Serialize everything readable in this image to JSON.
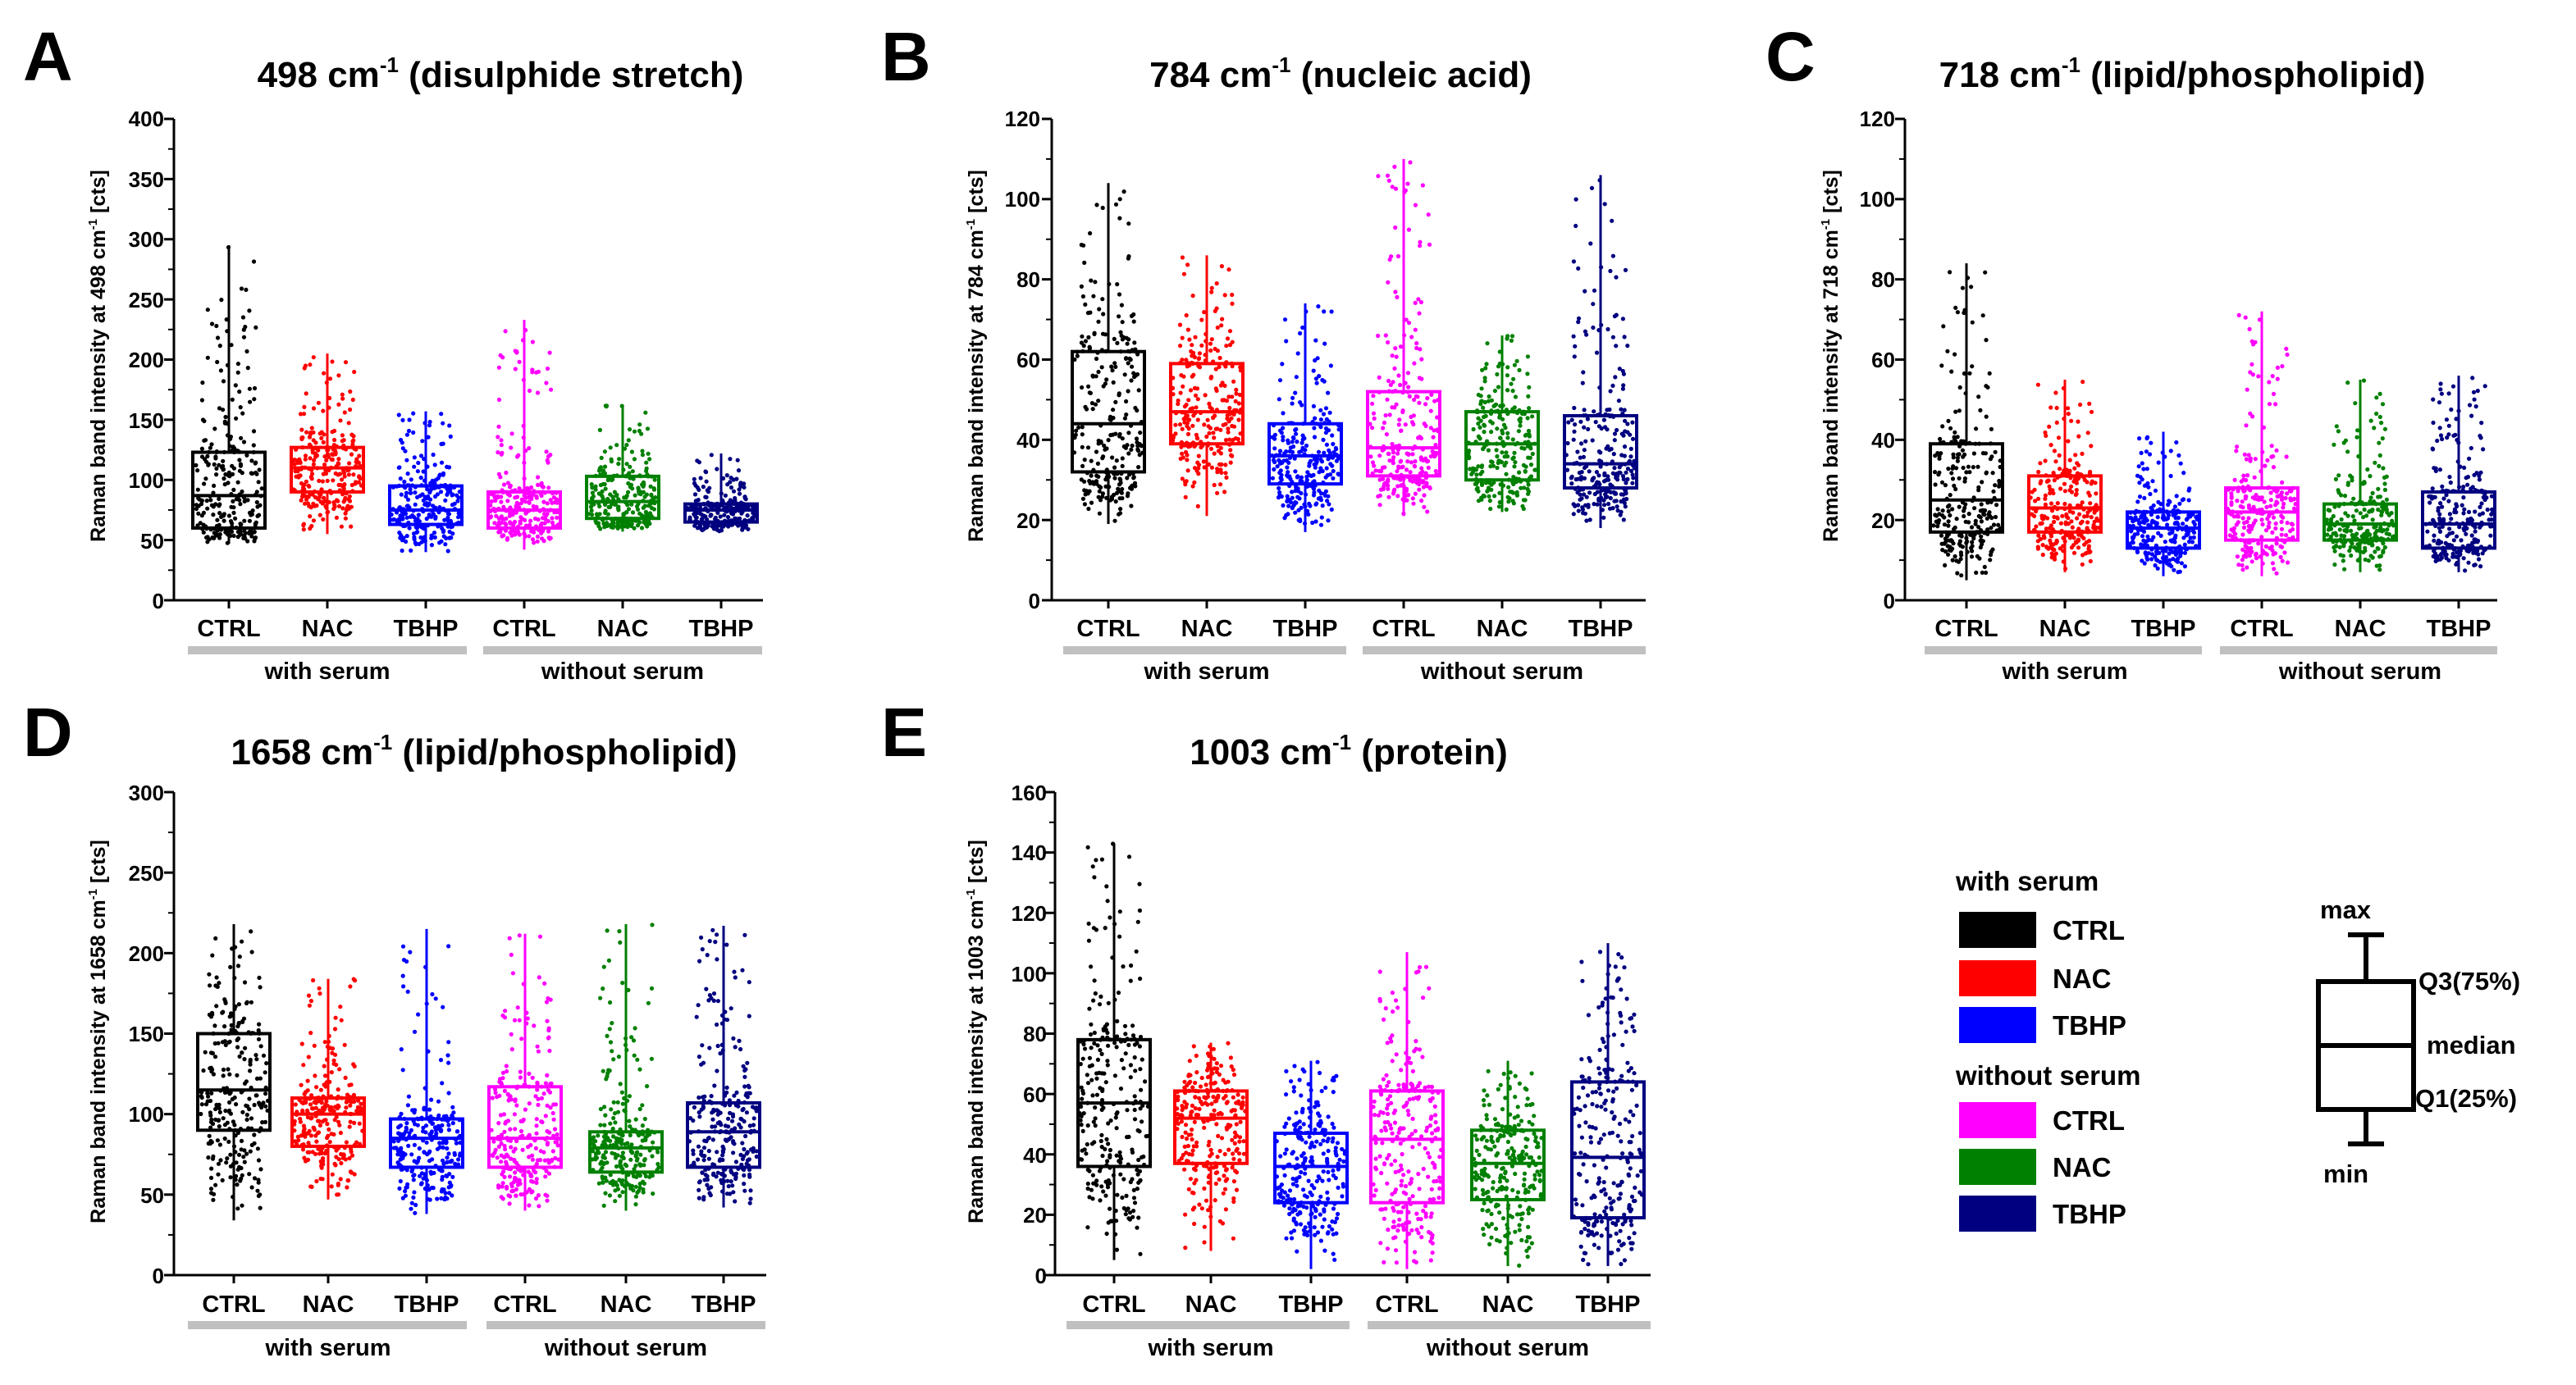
{
  "groups": [
    "with serum",
    "without serum"
  ],
  "categories": [
    "CTRL",
    "NAC",
    "TBHP",
    "CTRL",
    "NAC",
    "TBHP"
  ],
  "colors": [
    "#000000",
    "#ff0000",
    "#0000ff",
    "#ff00ff",
    "#008000",
    "#000080"
  ],
  "chart_data": [
    {
      "panel": "A",
      "type": "box",
      "title_prefix": "498 cm",
      "title_sup": "-1",
      "title_suffix": " (disulphide stretch)",
      "ylabel_prefix": "Raman band intensity at 498 cm",
      "ylabel_sup": "-1",
      "ylabel_suffix": " [cts]",
      "ylim": [
        0,
        400
      ],
      "yticks": [
        "0",
        "50",
        "100",
        "150",
        "200",
        "250",
        "300",
        "350",
        "400"
      ],
      "categories": [
        "CTRL",
        "NAC",
        "TBHP",
        "CTRL",
        "NAC",
        "TBHP"
      ],
      "groups": [
        "with serum",
        "without serum"
      ],
      "series": [
        {
          "min": 47,
          "q1": 60,
          "median": 87,
          "q3": 123,
          "max": 295
        },
        {
          "min": 55,
          "q1": 90,
          "median": 110,
          "q3": 127,
          "max": 205
        },
        {
          "min": 40,
          "q1": 63,
          "median": 75,
          "q3": 95,
          "max": 157
        },
        {
          "min": 42,
          "q1": 60,
          "median": 75,
          "q3": 90,
          "max": 233
        },
        {
          "min": 57,
          "q1": 68,
          "median": 82,
          "q3": 103,
          "max": 162
        },
        {
          "min": 57,
          "q1": 65,
          "median": 75,
          "q3": 80,
          "max": 122
        }
      ]
    },
    {
      "panel": "B",
      "type": "box",
      "title_prefix": "784 cm",
      "title_sup": "-1",
      "title_suffix": " (nucleic acid)",
      "ylabel_prefix": "Raman band intensity at 784 cm",
      "ylabel_sup": "-1",
      "ylabel_suffix": " [cts]",
      "ylim": [
        0,
        120
      ],
      "yticks": [
        "0",
        "20",
        "40",
        "60",
        "80",
        "100",
        "120"
      ],
      "categories": [
        "CTRL",
        "NAC",
        "TBHP",
        "CTRL",
        "NAC",
        "TBHP"
      ],
      "groups": [
        "with serum",
        "without serum"
      ],
      "series": [
        {
          "min": 19,
          "q1": 32,
          "median": 44,
          "q3": 62,
          "max": 104
        },
        {
          "min": 21,
          "q1": 39,
          "median": 47,
          "q3": 59,
          "max": 86
        },
        {
          "min": 17,
          "q1": 29,
          "median": 36,
          "q3": 44,
          "max": 74
        },
        {
          "min": 21,
          "q1": 31,
          "median": 38,
          "q3": 52,
          "max": 110
        },
        {
          "min": 22,
          "q1": 30,
          "median": 39,
          "q3": 47,
          "max": 66
        },
        {
          "min": 18,
          "q1": 28,
          "median": 34,
          "q3": 46,
          "max": 106
        }
      ]
    },
    {
      "panel": "C",
      "type": "box",
      "title_prefix": "718 cm",
      "title_sup": "-1",
      "title_suffix": " (lipid/phospholipid)",
      "ylabel_prefix": "Raman band intensity at 718 cm",
      "ylabel_sup": "-1",
      "ylabel_suffix": " [cts]",
      "ylim": [
        0,
        120
      ],
      "yticks": [
        "0",
        "20",
        "40",
        "60",
        "80",
        "100",
        "120"
      ],
      "categories": [
        "CTRL",
        "NAC",
        "TBHP",
        "CTRL",
        "NAC",
        "TBHP"
      ],
      "groups": [
        "with serum",
        "without serum"
      ],
      "series": [
        {
          "min": 5,
          "q1": 17,
          "median": 25,
          "q3": 39,
          "max": 84
        },
        {
          "min": 7,
          "q1": 17,
          "median": 23,
          "q3": 31,
          "max": 55
        },
        {
          "min": 6,
          "q1": 13,
          "median": 18,
          "q3": 22,
          "max": 42
        },
        {
          "min": 6,
          "q1": 15,
          "median": 22,
          "q3": 28,
          "max": 72
        },
        {
          "min": 7,
          "q1": 15,
          "median": 19,
          "q3": 24,
          "max": 55
        },
        {
          "min": 7,
          "q1": 13,
          "median": 19,
          "q3": 27,
          "max": 56
        }
      ]
    },
    {
      "panel": "D",
      "type": "box",
      "title_prefix": "1658 cm",
      "title_sup": "-1",
      "title_suffix": " (lipid/phospholipid)",
      "ylabel_prefix": "Raman band intensity at 1658 cm",
      "ylabel_sup": "-1",
      "ylabel_suffix": " [cts]",
      "ylim": [
        0,
        300
      ],
      "yticks": [
        "0",
        "50",
        "100",
        "150",
        "200",
        "250",
        "300"
      ],
      "categories": [
        "CTRL",
        "NAC",
        "TBHP",
        "CTRL",
        "NAC",
        "TBHP"
      ],
      "groups": [
        "with serum",
        "without serum"
      ],
      "series": [
        {
          "min": 34,
          "q1": 90,
          "median": 115,
          "q3": 150,
          "max": 218
        },
        {
          "min": 47,
          "q1": 80,
          "median": 100,
          "q3": 110,
          "max": 184
        },
        {
          "min": 38,
          "q1": 67,
          "median": 85,
          "q3": 97,
          "max": 215
        },
        {
          "min": 40,
          "q1": 67,
          "median": 85,
          "q3": 117,
          "max": 212
        },
        {
          "min": 40,
          "q1": 64,
          "median": 79,
          "q3": 89,
          "max": 218
        },
        {
          "min": 42,
          "q1": 67,
          "median": 89,
          "q3": 107,
          "max": 217
        }
      ]
    },
    {
      "panel": "E",
      "type": "box",
      "title_prefix": "1003 cm",
      "title_sup": "-1",
      "title_suffix": " (protein)",
      "ylabel_prefix": "Raman band intensity at 1003 cm",
      "ylabel_sup": "-1",
      "ylabel_suffix": " [cts]",
      "ylim": [
        0,
        160
      ],
      "yticks": [
        "0",
        "20",
        "40",
        "60",
        "80",
        "100",
        "120",
        "140",
        "160"
      ],
      "categories": [
        "CTRL",
        "NAC",
        "TBHP",
        "CTRL",
        "NAC",
        "TBHP"
      ],
      "groups": [
        "with serum",
        "without serum"
      ],
      "series": [
        {
          "min": 5,
          "q1": 36,
          "median": 57,
          "q3": 78,
          "max": 143
        },
        {
          "min": 8,
          "q1": 37,
          "median": 52,
          "q3": 61,
          "max": 77
        },
        {
          "min": 2,
          "q1": 24,
          "median": 36,
          "q3": 47,
          "max": 71
        },
        {
          "min": 2,
          "q1": 24,
          "median": 45,
          "q3": 61,
          "max": 107
        },
        {
          "min": 3,
          "q1": 25,
          "median": 37,
          "q3": 48,
          "max": 71
        },
        {
          "min": 3,
          "q1": 19,
          "median": 39,
          "q3": 64,
          "max": 110
        }
      ]
    }
  ],
  "legend": {
    "with_serum_heading": "with serum",
    "without_serum_heading": "without serum",
    "items": [
      {
        "label": "CTRL",
        "color": "#000000"
      },
      {
        "label": "NAC",
        "color": "#ff0000"
      },
      {
        "label": "TBHP",
        "color": "#0000ff"
      },
      {
        "label": "CTRL",
        "color": "#ff00ff"
      },
      {
        "label": "NAC",
        "color": "#008000"
      },
      {
        "label": "TBHP",
        "color": "#000080"
      }
    ],
    "box_key": {
      "max": "max",
      "q3": "Q3(75%)",
      "median": "median",
      "q1": "Q1(25%)",
      "min": "min"
    }
  }
}
